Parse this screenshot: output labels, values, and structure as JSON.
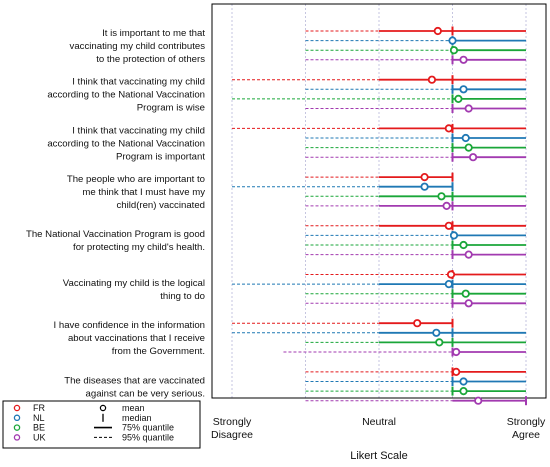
{
  "chart_data": {
    "type": "dot-range",
    "xlabel": "Likert Scale",
    "xlim": [
      1,
      5
    ],
    "ticks": [
      {
        "value": 1,
        "lines": [
          "Strongly",
          "Disagree"
        ]
      },
      {
        "value": 3,
        "lines": [
          "Neutral"
        ]
      },
      {
        "value": 5,
        "lines": [
          "Strongly",
          "Agree"
        ]
      }
    ],
    "minor_grid": [
      2,
      4
    ],
    "colors": {
      "FR": "#e41a1c",
      "NL": "#1f78b4",
      "BE": "#1aa639",
      "UK": "#a23ab0"
    },
    "items": [
      {
        "lines": [
          "It is important to me that",
          "vaccinating my child contributes",
          "to the protection of others"
        ],
        "data": [
          {
            "group": "FR",
            "mean": 3.8,
            "median": 4,
            "q75": [
              3.0,
              5.0
            ],
            "q95": [
              2.0,
              5.0
            ]
          },
          {
            "group": "NL",
            "mean": 4.0,
            "median": 4,
            "q75": [
              4.0,
              5.0
            ],
            "q95": [
              2.0,
              5.0
            ]
          },
          {
            "group": "BE",
            "mean": 4.02,
            "median": 4,
            "q75": [
              4.0,
              5.0
            ],
            "q95": [
              2.0,
              5.0
            ]
          },
          {
            "group": "UK",
            "mean": 4.15,
            "median": 4,
            "q75": [
              4.0,
              5.0
            ],
            "q95": [
              2.0,
              5.0
            ]
          }
        ]
      },
      {
        "lines": [
          "I think that vaccinating my child",
          "according to the National Vaccination",
          "Program is wise"
        ],
        "data": [
          {
            "group": "FR",
            "mean": 3.72,
            "median": 4,
            "q75": [
              3.0,
              5.0
            ],
            "q95": [
              1.0,
              5.0
            ]
          },
          {
            "group": "NL",
            "mean": 4.15,
            "median": 4,
            "q75": [
              4.0,
              5.0
            ],
            "q95": [
              2.0,
              5.0
            ]
          },
          {
            "group": "BE",
            "mean": 4.08,
            "median": 4,
            "q75": [
              4.0,
              5.0
            ],
            "q95": [
              1.0,
              5.0
            ]
          },
          {
            "group": "UK",
            "mean": 4.22,
            "median": 4,
            "q75": [
              4.0,
              5.0
            ],
            "q95": [
              2.0,
              5.0
            ]
          }
        ]
      },
      {
        "lines": [
          "I think that vaccinating my child",
          "according to the National Vaccination",
          "Program is important"
        ],
        "data": [
          {
            "group": "FR",
            "mean": 3.95,
            "median": 4,
            "q75": [
              3.0,
              5.0
            ],
            "q95": [
              1.0,
              5.0
            ]
          },
          {
            "group": "NL",
            "mean": 4.18,
            "median": 4,
            "q75": [
              4.0,
              5.0
            ],
            "q95": [
              2.0,
              5.0
            ]
          },
          {
            "group": "BE",
            "mean": 4.22,
            "median": 4,
            "q75": [
              4.0,
              5.0
            ],
            "q95": [
              2.0,
              5.0
            ]
          },
          {
            "group": "UK",
            "mean": 4.28,
            "median": 4,
            "q75": [
              4.0,
              5.0
            ],
            "q95": [
              2.0,
              5.0
            ]
          }
        ]
      },
      {
        "lines": [
          "The people who are important to",
          "me think that I must have my",
          "child(ren) vaccinated"
        ],
        "data": [
          {
            "group": "FR",
            "mean": 3.62,
            "median": 4,
            "q75": [
              3.0,
              4.0
            ],
            "q95": [
              2.0,
              4.0
            ]
          },
          {
            "group": "NL",
            "mean": 3.62,
            "median": 4,
            "q75": [
              3.0,
              4.0
            ],
            "q95": [
              1.0,
              4.0
            ]
          },
          {
            "group": "BE",
            "mean": 3.85,
            "median": 4,
            "q75": [
              3.0,
              5.0
            ],
            "q95": [
              2.0,
              5.0
            ]
          },
          {
            "group": "UK",
            "mean": 3.92,
            "median": 4,
            "q75": [
              3.0,
              5.0
            ],
            "q95": [
              2.0,
              5.0
            ]
          }
        ]
      },
      {
        "lines": [
          "The National Vaccination Program is good",
          "for protecting my child's health."
        ],
        "data": [
          {
            "group": "FR",
            "mean": 3.95,
            "median": 4,
            "q75": [
              3.0,
              5.0
            ],
            "q95": [
              2.0,
              5.0
            ]
          },
          {
            "group": "NL",
            "mean": 4.02,
            "median": 4,
            "q75": [
              4.0,
              5.0
            ],
            "q95": [
              2.0,
              5.0
            ]
          },
          {
            "group": "BE",
            "mean": 4.15,
            "median": 4,
            "q75": [
              4.0,
              5.0
            ],
            "q95": [
              2.0,
              5.0
            ]
          },
          {
            "group": "UK",
            "mean": 4.22,
            "median": 4,
            "q75": [
              4.0,
              5.0
            ],
            "q95": [
              2.0,
              5.0
            ]
          }
        ]
      },
      {
        "lines": [
          "Vaccinating my child is the logical",
          "thing to do"
        ],
        "data": [
          {
            "group": "FR",
            "mean": 3.98,
            "median": 4,
            "q75": [
              4.0,
              5.0
            ],
            "q95": [
              2.0,
              5.0
            ]
          },
          {
            "group": "NL",
            "mean": 3.95,
            "median": 4,
            "q75": [
              3.0,
              5.0
            ],
            "q95": [
              1.0,
              5.0
            ]
          },
          {
            "group": "BE",
            "mean": 4.18,
            "median": 4,
            "q75": [
              4.0,
              5.0
            ],
            "q95": [
              2.0,
              5.0
            ]
          },
          {
            "group": "UK",
            "mean": 4.22,
            "median": 4,
            "q75": [
              4.0,
              5.0
            ],
            "q95": [
              2.0,
              5.0
            ]
          }
        ]
      },
      {
        "lines": [
          "I have confidence in the information",
          "about vaccinations that I receive",
          "from the Government."
        ],
        "data": [
          {
            "group": "FR",
            "mean": 3.52,
            "median": 4,
            "q75": [
              3.0,
              4.0
            ],
            "q95": [
              1.0,
              4.0
            ]
          },
          {
            "group": "NL",
            "mean": 3.78,
            "median": 4,
            "q75": [
              3.0,
              5.0
            ],
            "q95": [
              1.0,
              5.0
            ]
          },
          {
            "group": "BE",
            "mean": 3.82,
            "median": 4,
            "q75": [
              3.0,
              5.0
            ],
            "q95": [
              2.0,
              5.0
            ]
          },
          {
            "group": "UK",
            "mean": 4.05,
            "median": 4,
            "q75": [
              4.0,
              5.0
            ],
            "q95": [
              1.7,
              5.0
            ]
          }
        ]
      },
      {
        "lines": [
          "The diseases that are vaccinated",
          "against can be very serious."
        ],
        "data": [
          {
            "group": "FR",
            "mean": 4.05,
            "median": 4,
            "q75": [
              4.0,
              5.0
            ],
            "q95": [
              2.0,
              5.0
            ]
          },
          {
            "group": "NL",
            "mean": 4.15,
            "median": 4,
            "q75": [
              4.0,
              5.0
            ],
            "q95": [
              2.0,
              5.0
            ]
          },
          {
            "group": "BE",
            "mean": 4.15,
            "median": 4,
            "q75": [
              4.0,
              5.0
            ],
            "q95": [
              2.0,
              5.0
            ]
          },
          {
            "group": "UK",
            "mean": 4.35,
            "median": 5,
            "q75": [
              4.0,
              5.0
            ],
            "q95": [
              2.0,
              5.0
            ]
          }
        ]
      }
    ],
    "legend": {
      "groups": [
        "FR",
        "NL",
        "BE",
        "UK"
      ],
      "symbols": [
        {
          "glyph": "o",
          "label": "mean"
        },
        {
          "glyph": "I",
          "label": "median"
        },
        {
          "glyph": "line",
          "label": "75% quantile"
        },
        {
          "glyph": "dash",
          "label": "95% quantile"
        }
      ]
    }
  }
}
